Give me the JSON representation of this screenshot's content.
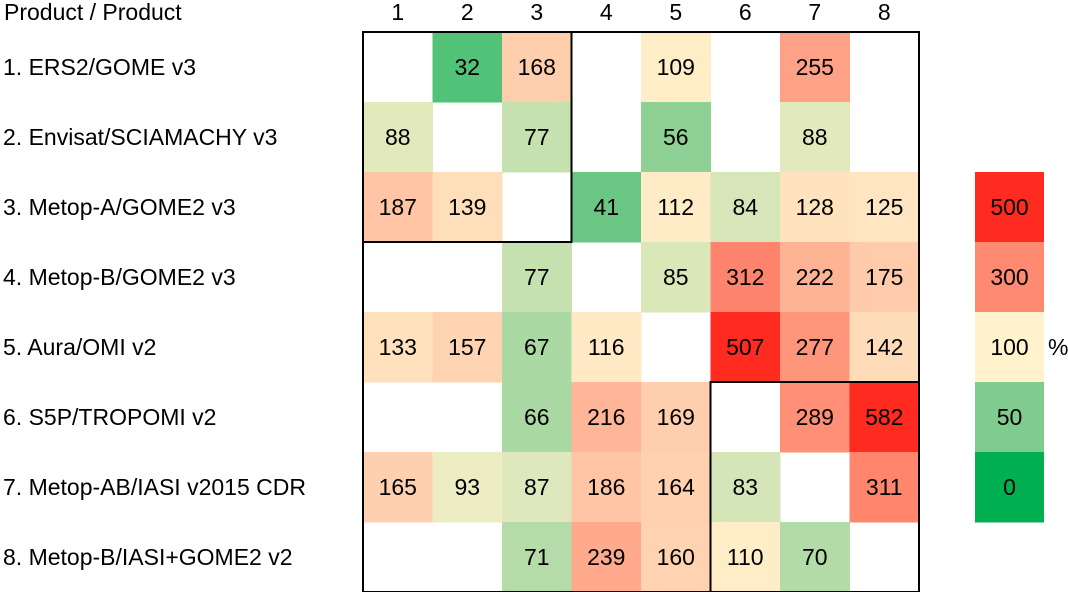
{
  "chart_data": {
    "type": "heatmap",
    "title": "",
    "corner_label": "Product / Product",
    "columns": [
      "1",
      "2",
      "3",
      "4",
      "5",
      "6",
      "7",
      "8"
    ],
    "rows": [
      "1. ERS2/GOME v3",
      "2. Envisat/SCIAMACHY v3",
      "3. Metop-A/GOME2 v3",
      "4. Metop-B/GOME2 v3",
      "5. Aura/OMI v2",
      "6. S5P/TROPOMI v2",
      "7. Metop-AB/IASI v2015 CDR",
      "8. Metop-B/IASI+GOME2 v2"
    ],
    "values": [
      [
        null,
        32,
        168,
        null,
        109,
        null,
        255,
        null
      ],
      [
        88,
        null,
        77,
        null,
        56,
        null,
        88,
        null
      ],
      [
        187,
        139,
        null,
        41,
        112,
        84,
        128,
        125
      ],
      [
        null,
        null,
        77,
        null,
        85,
        312,
        222,
        175
      ],
      [
        133,
        157,
        67,
        116,
        null,
        507,
        277,
        142
      ],
      [
        null,
        null,
        66,
        216,
        169,
        null,
        289,
        582
      ],
      [
        165,
        93,
        87,
        186,
        164,
        83,
        null,
        311
      ],
      [
        null,
        null,
        71,
        239,
        160,
        110,
        70,
        null
      ]
    ],
    "color_scale": {
      "unit": "%",
      "stops": [
        {
          "value": 500,
          "color": "#ff2a20"
        },
        {
          "value": 300,
          "color": "#ff8a72"
        },
        {
          "value": 100,
          "color": "#fff2cc"
        },
        {
          "value": 50,
          "color": "#80cc8e"
        },
        {
          "value": 0,
          "color": "#00b050"
        }
      ]
    },
    "outlined_blocks": [
      {
        "rows": [
          1,
          3
        ],
        "cols": [
          1,
          3
        ]
      },
      {
        "rows": [
          6,
          8
        ],
        "cols": [
          6,
          8
        ]
      }
    ]
  }
}
